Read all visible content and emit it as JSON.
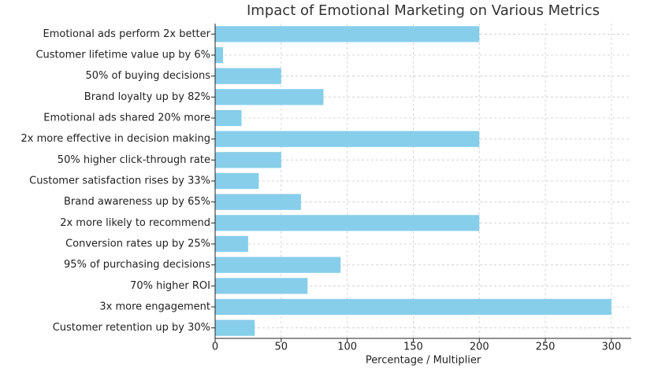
{
  "chart_data": {
    "type": "barh",
    "title": "Impact of Emotional Marketing on Various Metrics",
    "xlabel": "Percentage / Multiplier",
    "categories": [
      "Emotional ads perform 2x better",
      "Customer lifetime value up by 6%",
      "50% of buying decisions",
      "Brand loyalty up by 82%",
      "Emotional ads shared 20% more",
      "2x more effective in decision making",
      "50% higher click-through rate",
      "Customer satisfaction rises by 33%",
      "Brand awareness up by 65%",
      "2x more likely to recommend",
      "Conversion rates up by 25%",
      "95% of purchasing decisions",
      "70% higher ROI",
      "3x more engagement",
      "Customer retention up by 30%"
    ],
    "values": [
      200,
      6,
      50,
      82,
      20,
      200,
      50,
      33,
      65,
      200,
      25,
      95,
      70,
      300,
      30
    ],
    "color": "#87ceeb",
    "xlim": [
      0,
      315
    ],
    "xticks": [
      0,
      50,
      100,
      150,
      200,
      250,
      300
    ],
    "grid": true
  }
}
